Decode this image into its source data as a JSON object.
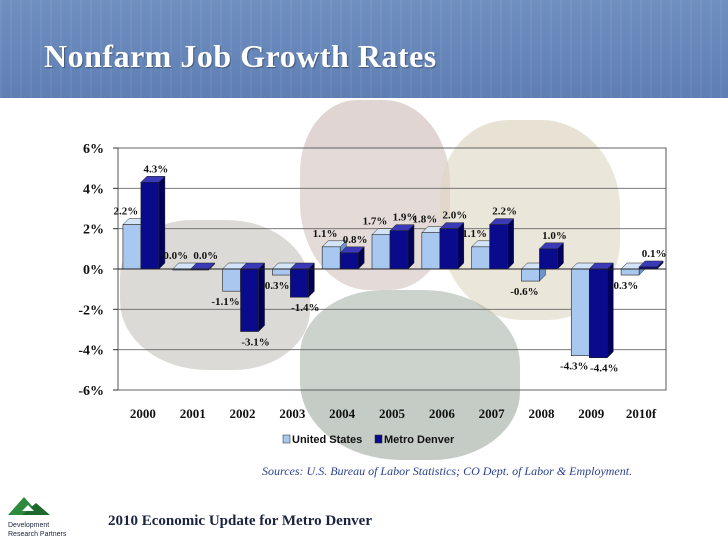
{
  "header": {
    "title": "Nonfarm Job Growth Rates"
  },
  "footer": {
    "sources": "Sources:  U.S. Bureau of Labor Statistics; CO Dept. of Labor & Employment.",
    "text": "2010 Economic Update for Metro Denver",
    "logo_line1": "Development",
    "logo_line2": "Research Partners"
  },
  "colors": {
    "us": "#a8c8f0",
    "metro": "#0a0a8c",
    "title_bar": "#6585ba"
  },
  "chart_data": {
    "type": "bar",
    "categories": [
      "2000",
      "2001",
      "2002",
      "2003",
      "2004",
      "2005",
      "2006",
      "2007",
      "2008",
      "2009",
      "2010f"
    ],
    "series": [
      {
        "name": "United States",
        "values": [
          2.2,
          0.0,
          -1.1,
          -0.3,
          1.1,
          1.7,
          1.8,
          1.1,
          -0.6,
          -4.3,
          -0.3
        ],
        "labels": [
          "2.2%",
          "0.0%",
          "-1.1%",
          "-0.3%",
          "1.1%",
          "1.7%",
          "1.8%",
          "1.1%",
          "-0.6%",
          "-4.3%",
          "-0.3%"
        ]
      },
      {
        "name": "Metro Denver",
        "values": [
          4.3,
          0.0,
          -3.1,
          -1.4,
          0.8,
          1.9,
          2.0,
          2.2,
          1.0,
          -4.4,
          0.1
        ],
        "labels": [
          "4.3%",
          "0.0%",
          "-3.1%",
          "-1.4%",
          "0.8%",
          "1.9%",
          "2.0%",
          "2.2%",
          "1.0%",
          "-4.4%",
          "0.1%"
        ]
      }
    ],
    "ylim": [
      -6,
      6
    ],
    "yticks": [
      6,
      4,
      2,
      0,
      -2,
      -4,
      -6
    ],
    "ytick_labels": [
      "6%",
      "4%",
      "2%",
      "0%",
      "-2%",
      "-4%",
      "-6%"
    ],
    "xlabel": "",
    "ylabel": "",
    "legend": "bottom-center",
    "grid": true
  }
}
